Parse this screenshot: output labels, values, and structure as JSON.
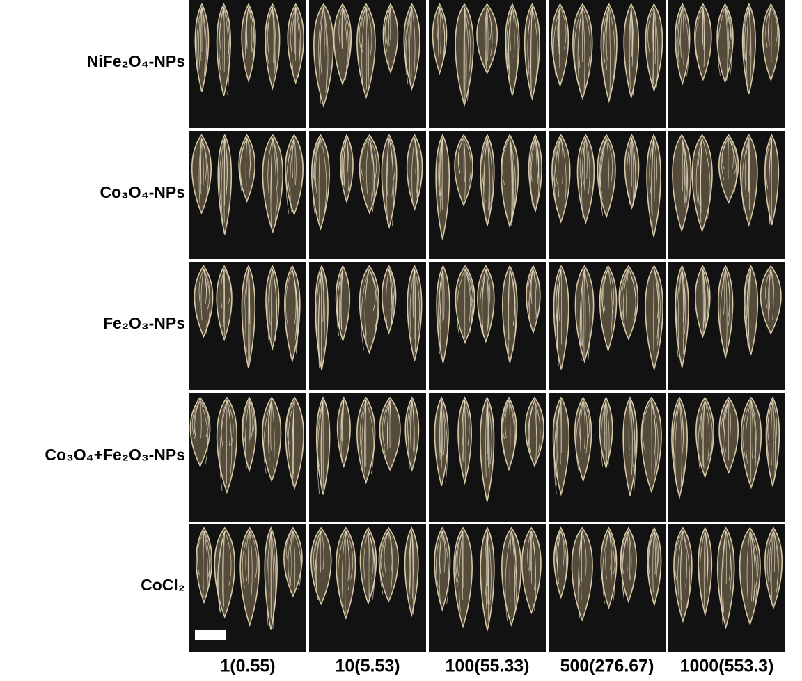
{
  "row_labels": [
    "NiFe₂O₄-NPs",
    "Co₃O₄-NPs",
    "Fe₂O₃-NPs",
    "Co₃O₄+Fe₂O₃-NPs",
    "CoCl₂"
  ],
  "column_labels": [
    "1(0.55)",
    "10(5.53)",
    "100(55.33)",
    "500(276.67)",
    "1000(553.3)"
  ]
}
